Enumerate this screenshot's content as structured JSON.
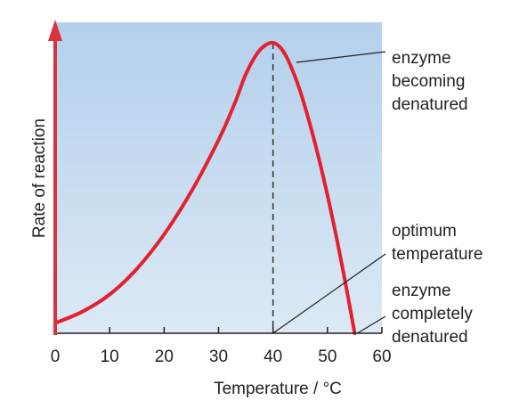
{
  "chart_data": {
    "type": "line",
    "title": "",
    "xlabel": "Temperature / °C",
    "ylabel": "Rate of reaction",
    "xlim": [
      0,
      60
    ],
    "x_ticks": [
      "0",
      "10",
      "20",
      "30",
      "40",
      "50",
      "60"
    ],
    "y_ticks": [],
    "grid": false,
    "background": "light-blue gradient (darker at top)",
    "series": [
      {
        "color": "#e4202e",
        "points": [
          {
            "x": 0,
            "y": 0.02
          },
          {
            "x": 5,
            "y": 0.06
          },
          {
            "x": 10,
            "y": 0.12
          },
          {
            "x": 15,
            "y": 0.21
          },
          {
            "x": 20,
            "y": 0.33
          },
          {
            "x": 25,
            "y": 0.48
          },
          {
            "x": 30,
            "y": 0.66
          },
          {
            "x": 33,
            "y": 0.79
          },
          {
            "x": 35,
            "y": 0.89
          },
          {
            "x": 37,
            "y": 0.96
          },
          {
            "x": 38.5,
            "y": 0.99
          },
          {
            "x": 40,
            "y": 1.0
          },
          {
            "x": 41.5,
            "y": 0.98
          },
          {
            "x": 43,
            "y": 0.93
          },
          {
            "x": 45,
            "y": 0.83
          },
          {
            "x": 47,
            "y": 0.7
          },
          {
            "x": 49,
            "y": 0.55
          },
          {
            "x": 51,
            "y": 0.38
          },
          {
            "x": 53,
            "y": 0.19
          },
          {
            "x": 55,
            "y": 0.0
          }
        ]
      }
    ],
    "optimum_x": 40,
    "annotations": [
      {
        "lines": [
          "enzyme",
          "becoming",
          "denatured"
        ],
        "points_to_x": 41.5
      },
      {
        "lines": [
          "optimum",
          "temperature"
        ],
        "points_to_x": 40
      },
      {
        "lines": [
          "enzyme",
          "completely",
          "denatured"
        ],
        "points_to_x": 55
      }
    ],
    "colors": {
      "curve": "#e4202e",
      "y_axis_arrow": "#d9323a",
      "x_axis": "#231f20",
      "optimum_line": "#333333",
      "bg_top": "#b3d0ec",
      "bg_bottom": "#dce9f5"
    }
  }
}
